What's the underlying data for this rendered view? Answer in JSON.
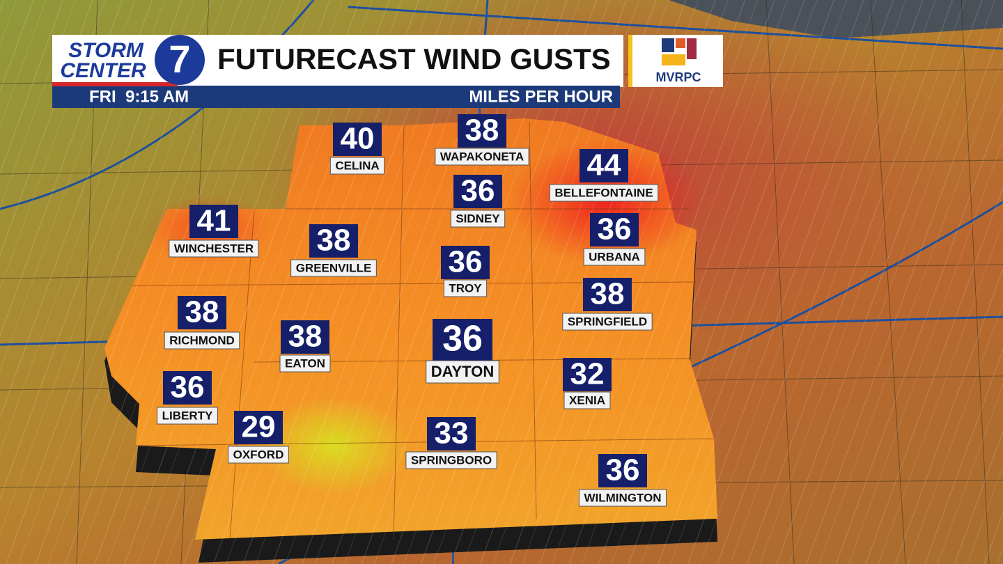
{
  "header": {
    "logo_top": "STORM",
    "logo_bottom": "CENTER",
    "logo_number": "7",
    "title": "FUTURECAST WIND GUSTS",
    "partner": "MVRPC",
    "time": "FRI  9:15 AM",
    "units": "MILES PER HOUR"
  },
  "cities": [
    {
      "name": "CELINA",
      "gust": 40
    },
    {
      "name": "WAPAKONETA",
      "gust": 38
    },
    {
      "name": "BELLEFONTAINE",
      "gust": 44
    },
    {
      "name": "SIDNEY",
      "gust": 36
    },
    {
      "name": "WINCHESTER",
      "gust": 41
    },
    {
      "name": "GREENVILLE",
      "gust": 38
    },
    {
      "name": "URBANA",
      "gust": 36
    },
    {
      "name": "TROY",
      "gust": 36
    },
    {
      "name": "SPRINGFIELD",
      "gust": 38
    },
    {
      "name": "RICHMOND",
      "gust": 38
    },
    {
      "name": "EATON",
      "gust": 38
    },
    {
      "name": "DAYTON",
      "gust": 36
    },
    {
      "name": "XENIA",
      "gust": 32
    },
    {
      "name": "LIBERTY",
      "gust": 36
    },
    {
      "name": "OXFORD",
      "gust": 29
    },
    {
      "name": "SPRINGBORO",
      "gust": 33
    },
    {
      "name": "WILMINGTON",
      "gust": 36
    }
  ]
}
